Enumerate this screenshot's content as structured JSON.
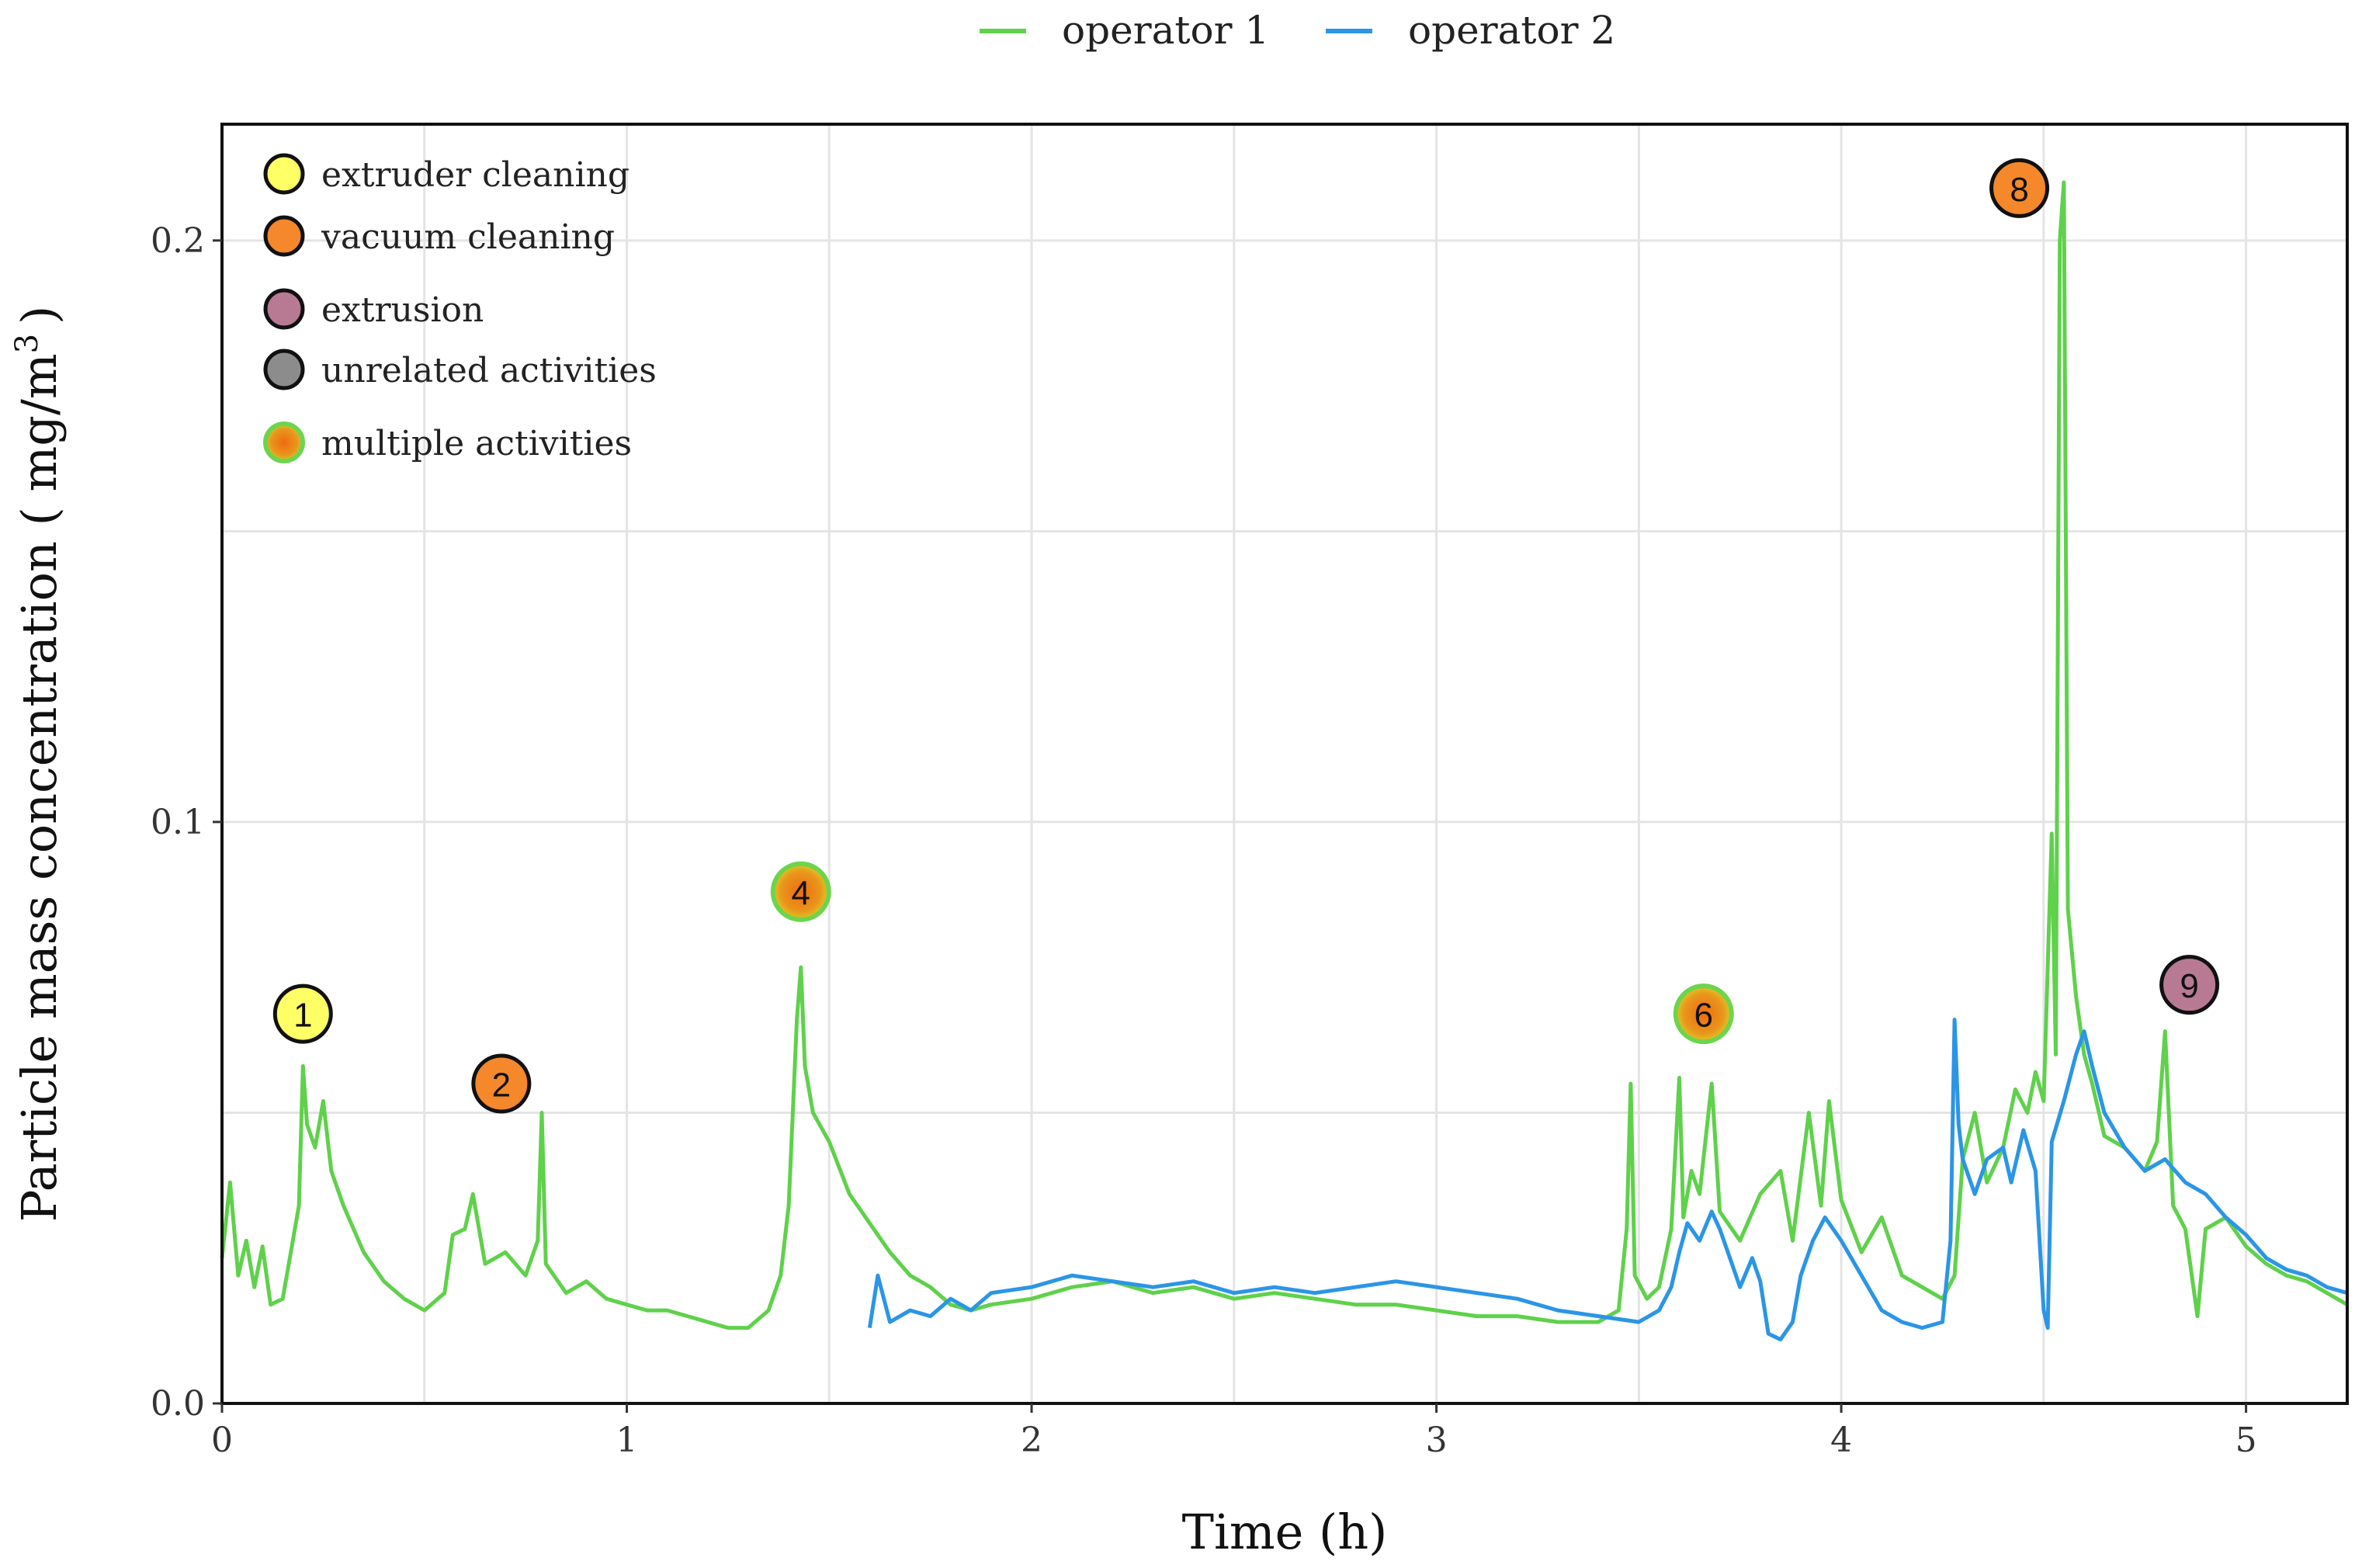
{
  "chart_data": {
    "type": "line",
    "title": "",
    "xlabel": "Time (h)",
    "ylabel_main": "Particle mass concentration ( mg/m",
    "ylabel_sup": "3",
    "ylabel_end": ")",
    "xlim": [
      0,
      5.25
    ],
    "ylim": [
      0,
      0.22
    ],
    "x_ticks": [
      0,
      1,
      2,
      3,
      4,
      5
    ],
    "x_tick_labels": [
      "0",
      "1",
      "2",
      "3",
      "4",
      "5"
    ],
    "y_ticks": [
      0.0,
      0.1,
      0.2
    ],
    "y_tick_labels": [
      "0.0",
      "0.1",
      "0.2"
    ],
    "grid": true,
    "legend_position": "top-center",
    "series": [
      {
        "name": "operator 1",
        "color": "#5fd14b",
        "points": [
          [
            0.0,
            0.025
          ],
          [
            0.02,
            0.038
          ],
          [
            0.04,
            0.022
          ],
          [
            0.06,
            0.028
          ],
          [
            0.08,
            0.02
          ],
          [
            0.1,
            0.027
          ],
          [
            0.12,
            0.017
          ],
          [
            0.15,
            0.018
          ],
          [
            0.17,
            0.026
          ],
          [
            0.19,
            0.034
          ],
          [
            0.2,
            0.058
          ],
          [
            0.21,
            0.048
          ],
          [
            0.23,
            0.044
          ],
          [
            0.25,
            0.052
          ],
          [
            0.27,
            0.04
          ],
          [
            0.3,
            0.034
          ],
          [
            0.35,
            0.026
          ],
          [
            0.4,
            0.021
          ],
          [
            0.45,
            0.018
          ],
          [
            0.5,
            0.016
          ],
          [
            0.55,
            0.019
          ],
          [
            0.57,
            0.029
          ],
          [
            0.6,
            0.03
          ],
          [
            0.62,
            0.036
          ],
          [
            0.65,
            0.024
          ],
          [
            0.7,
            0.026
          ],
          [
            0.75,
            0.022
          ],
          [
            0.78,
            0.028
          ],
          [
            0.79,
            0.05
          ],
          [
            0.8,
            0.024
          ],
          [
            0.85,
            0.019
          ],
          [
            0.9,
            0.021
          ],
          [
            0.95,
            0.018
          ],
          [
            1.0,
            0.017
          ],
          [
            1.05,
            0.016
          ],
          [
            1.1,
            0.016
          ],
          [
            1.15,
            0.015
          ],
          [
            1.2,
            0.014
          ],
          [
            1.25,
            0.013
          ],
          [
            1.3,
            0.013
          ],
          [
            1.35,
            0.016
          ],
          [
            1.38,
            0.022
          ],
          [
            1.4,
            0.034
          ],
          [
            1.42,
            0.066
          ],
          [
            1.43,
            0.075
          ],
          [
            1.44,
            0.058
          ],
          [
            1.46,
            0.05
          ],
          [
            1.5,
            0.045
          ],
          [
            1.55,
            0.036
          ],
          [
            1.6,
            0.031
          ],
          [
            1.65,
            0.026
          ],
          [
            1.7,
            0.022
          ],
          [
            1.75,
            0.02
          ],
          [
            1.8,
            0.017
          ],
          [
            1.85,
            0.016
          ],
          [
            1.9,
            0.017
          ],
          [
            2.0,
            0.018
          ],
          [
            2.1,
            0.02
          ],
          [
            2.2,
            0.021
          ],
          [
            2.3,
            0.019
          ],
          [
            2.4,
            0.02
          ],
          [
            2.5,
            0.018
          ],
          [
            2.6,
            0.019
          ],
          [
            2.7,
            0.018
          ],
          [
            2.8,
            0.017
          ],
          [
            2.9,
            0.017
          ],
          [
            3.0,
            0.016
          ],
          [
            3.1,
            0.015
          ],
          [
            3.2,
            0.015
          ],
          [
            3.3,
            0.014
          ],
          [
            3.4,
            0.014
          ],
          [
            3.45,
            0.016
          ],
          [
            3.47,
            0.03
          ],
          [
            3.48,
            0.055
          ],
          [
            3.49,
            0.022
          ],
          [
            3.52,
            0.018
          ],
          [
            3.55,
            0.02
          ],
          [
            3.58,
            0.03
          ],
          [
            3.6,
            0.056
          ],
          [
            3.61,
            0.032
          ],
          [
            3.63,
            0.04
          ],
          [
            3.65,
            0.036
          ],
          [
            3.68,
            0.055
          ],
          [
            3.7,
            0.033
          ],
          [
            3.75,
            0.028
          ],
          [
            3.8,
            0.036
          ],
          [
            3.85,
            0.04
          ],
          [
            3.88,
            0.028
          ],
          [
            3.92,
            0.05
          ],
          [
            3.95,
            0.034
          ],
          [
            3.97,
            0.052
          ],
          [
            4.0,
            0.035
          ],
          [
            4.05,
            0.026
          ],
          [
            4.1,
            0.032
          ],
          [
            4.15,
            0.022
          ],
          [
            4.2,
            0.02
          ],
          [
            4.25,
            0.018
          ],
          [
            4.28,
            0.022
          ],
          [
            4.3,
            0.042
          ],
          [
            4.33,
            0.05
          ],
          [
            4.36,
            0.038
          ],
          [
            4.4,
            0.044
          ],
          [
            4.43,
            0.054
          ],
          [
            4.46,
            0.05
          ],
          [
            4.48,
            0.057
          ],
          [
            4.5,
            0.052
          ],
          [
            4.52,
            0.098
          ],
          [
            4.53,
            0.06
          ],
          [
            4.54,
            0.2
          ],
          [
            4.55,
            0.21
          ],
          [
            4.56,
            0.085
          ],
          [
            4.58,
            0.07
          ],
          [
            4.6,
            0.06
          ],
          [
            4.62,
            0.055
          ],
          [
            4.65,
            0.046
          ],
          [
            4.7,
            0.044
          ],
          [
            4.75,
            0.04
          ],
          [
            4.78,
            0.045
          ],
          [
            4.8,
            0.064
          ],
          [
            4.82,
            0.034
          ],
          [
            4.85,
            0.03
          ],
          [
            4.88,
            0.015
          ],
          [
            4.9,
            0.03
          ],
          [
            4.95,
            0.032
          ],
          [
            5.0,
            0.027
          ],
          [
            5.05,
            0.024
          ],
          [
            5.1,
            0.022
          ],
          [
            5.15,
            0.021
          ],
          [
            5.2,
            0.019
          ],
          [
            5.25,
            0.017
          ]
        ]
      },
      {
        "name": "operator 2",
        "color": "#2b95e6",
        "points": [
          [
            1.6,
            0.013
          ],
          [
            1.62,
            0.022
          ],
          [
            1.65,
            0.014
          ],
          [
            1.7,
            0.016
          ],
          [
            1.75,
            0.015
          ],
          [
            1.8,
            0.018
          ],
          [
            1.85,
            0.016
          ],
          [
            1.9,
            0.019
          ],
          [
            2.0,
            0.02
          ],
          [
            2.1,
            0.022
          ],
          [
            2.2,
            0.021
          ],
          [
            2.3,
            0.02
          ],
          [
            2.4,
            0.021
          ],
          [
            2.5,
            0.019
          ],
          [
            2.6,
            0.02
          ],
          [
            2.7,
            0.019
          ],
          [
            2.8,
            0.02
          ],
          [
            2.9,
            0.021
          ],
          [
            3.0,
            0.02
          ],
          [
            3.1,
            0.019
          ],
          [
            3.2,
            0.018
          ],
          [
            3.3,
            0.016
          ],
          [
            3.4,
            0.015
          ],
          [
            3.5,
            0.014
          ],
          [
            3.55,
            0.016
          ],
          [
            3.58,
            0.02
          ],
          [
            3.6,
            0.026
          ],
          [
            3.62,
            0.031
          ],
          [
            3.65,
            0.028
          ],
          [
            3.68,
            0.033
          ],
          [
            3.7,
            0.03
          ],
          [
            3.72,
            0.026
          ],
          [
            3.75,
            0.02
          ],
          [
            3.78,
            0.025
          ],
          [
            3.8,
            0.021
          ],
          [
            3.82,
            0.012
          ],
          [
            3.85,
            0.011
          ],
          [
            3.88,
            0.014
          ],
          [
            3.9,
            0.022
          ],
          [
            3.93,
            0.028
          ],
          [
            3.96,
            0.032
          ],
          [
            4.0,
            0.028
          ],
          [
            4.05,
            0.022
          ],
          [
            4.1,
            0.016
          ],
          [
            4.15,
            0.014
          ],
          [
            4.2,
            0.013
          ],
          [
            4.25,
            0.014
          ],
          [
            4.27,
            0.028
          ],
          [
            4.28,
            0.066
          ],
          [
            4.29,
            0.048
          ],
          [
            4.3,
            0.042
          ],
          [
            4.33,
            0.036
          ],
          [
            4.36,
            0.042
          ],
          [
            4.4,
            0.044
          ],
          [
            4.42,
            0.038
          ],
          [
            4.45,
            0.047
          ],
          [
            4.48,
            0.04
          ],
          [
            4.5,
            0.016
          ],
          [
            4.51,
            0.013
          ],
          [
            4.52,
            0.045
          ],
          [
            4.55,
            0.052
          ],
          [
            4.58,
            0.06
          ],
          [
            4.6,
            0.064
          ],
          [
            4.62,
            0.058
          ],
          [
            4.65,
            0.05
          ],
          [
            4.7,
            0.044
          ],
          [
            4.75,
            0.04
          ],
          [
            4.8,
            0.042
          ],
          [
            4.85,
            0.038
          ],
          [
            4.9,
            0.036
          ],
          [
            4.95,
            0.032
          ],
          [
            5.0,
            0.029
          ],
          [
            5.05,
            0.025
          ],
          [
            5.1,
            0.023
          ],
          [
            5.15,
            0.022
          ],
          [
            5.2,
            0.02
          ],
          [
            5.25,
            0.019
          ]
        ]
      }
    ],
    "activity_key": [
      {
        "label": "extruder cleaning",
        "type": "extruder"
      },
      {
        "label": "vacuum cleaning",
        "type": "vacuum"
      },
      {
        "label": "extrusion",
        "type": "extrusion"
      },
      {
        "label": "unrelated activities",
        "type": "unrelated"
      },
      {
        "label": "multiple activities",
        "type": "multiple"
      }
    ],
    "activity_colors": {
      "extruder": "#ffff66",
      "vacuum": "#f4882a",
      "extrusion": "#b87a93",
      "unrelated": "#8c8c8c",
      "multiple_outer": "#e0c820",
      "multiple_inner": "#f06a10"
    },
    "annotations": [
      {
        "label": "1",
        "type": "extruder",
        "x": 0.2,
        "y": 0.067
      },
      {
        "label": "2",
        "type": "vacuum",
        "x": 0.69,
        "y": 0.055
      },
      {
        "label": "4",
        "type": "multiple",
        "x": 1.43,
        "y": 0.088
      },
      {
        "label": "6",
        "type": "multiple",
        "x": 3.66,
        "y": 0.067
      },
      {
        "label": "8",
        "type": "vacuum",
        "x": 4.44,
        "y": 0.209
      },
      {
        "label": "9",
        "type": "extrusion",
        "x": 4.86,
        "y": 0.072
      }
    ]
  }
}
